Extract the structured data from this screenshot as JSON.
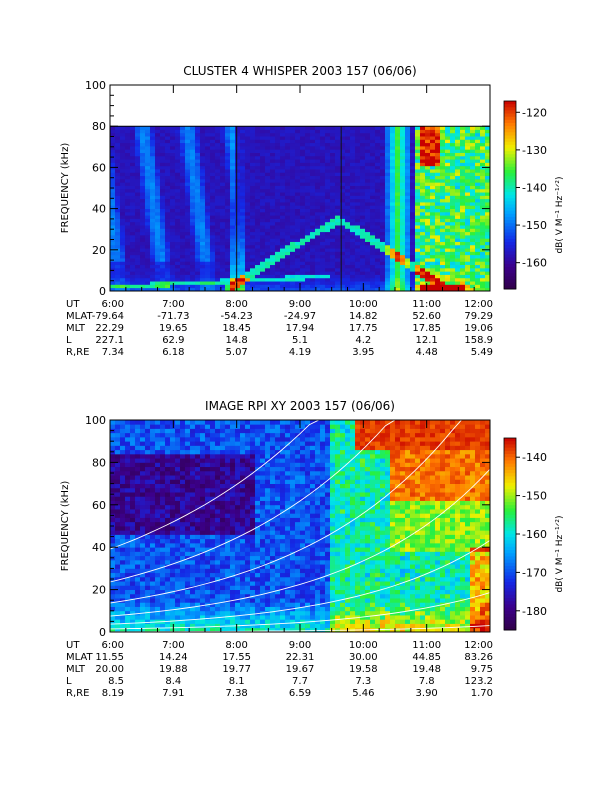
{
  "chart_data": [
    {
      "type": "heatmap",
      "title": "CLUSTER 4 WHISPER 2003 157 (06/06)",
      "ylabel": "FREQUENCY (kHz)",
      "ylim": [
        0,
        100
      ],
      "yticks": [
        "0",
        "20",
        "40",
        "60",
        "80",
        "100"
      ],
      "xlim": [
        "6:00",
        "12:00"
      ],
      "xticks": [
        "6:00",
        "7:00",
        "8:00",
        "9:00",
        "10:00",
        "11:00",
        "12:00"
      ],
      "data_ceiling_khz": 80,
      "colorbar": {
        "label": "dB( V M⁻¹ Hz⁻¹ᐟ²)",
        "range": [
          -167,
          -117
        ],
        "ticks": [
          "-120",
          "-130",
          "-140",
          "-150",
          "-160"
        ],
        "tick_values": [
          -120,
          -130,
          -140,
          -150,
          -160
        ]
      },
      "ephemeris": [
        {
          "name": "UT",
          "values": [
            "6:00",
            "7:00",
            "8:00",
            "9:00",
            "10:00",
            "11:00",
            "12:00"
          ]
        },
        {
          "name": "MLAT",
          "values": [
            "-79.64",
            "-71.73",
            "-54.23",
            "-24.97",
            "14.82",
            "52.60",
            "79.29"
          ]
        },
        {
          "name": "MLT",
          "values": [
            "22.29",
            "19.65",
            "18.45",
            "17.94",
            "17.75",
            "17.85",
            "19.06"
          ]
        },
        {
          "name": "L",
          "values": [
            "227.1",
            "62.9",
            "14.8",
            "5.1",
            "4.2",
            "12.1",
            "158.9"
          ]
        },
        {
          "name": "R,RE",
          "values": [
            "7.34",
            "6.18",
            "5.07",
            "4.19",
            "3.95",
            "4.48",
            "5.49"
          ]
        }
      ],
      "scheme": "cluster"
    },
    {
      "type": "heatmap",
      "title": "IMAGE RPI XY 2003 157 (06/06)",
      "ylabel": "FREQUENCY (kHz)",
      "ylim": [
        0,
        100
      ],
      "yticks": [
        "0",
        "20",
        "40",
        "60",
        "80",
        "100"
      ],
      "xlim": [
        "6:00",
        "12:00"
      ],
      "xticks": [
        "6:00",
        "7:00",
        "8:00",
        "9:00",
        "10:00",
        "11:00",
        "12:00"
      ],
      "colorbar": {
        "label": "dB( V M⁻¹ Hz⁻¹ᐟ²)",
        "range": [
          -185,
          -135
        ],
        "ticks": [
          "-140",
          "-150",
          "-160",
          "-170",
          "-180"
        ],
        "tick_values": [
          -140,
          -150,
          -160,
          -170,
          -180
        ]
      },
      "ephemeris": [
        {
          "name": "UT",
          "values": [
            "6:00",
            "7:00",
            "8:00",
            "9:00",
            "10:00",
            "11:00",
            "12:00"
          ]
        },
        {
          "name": "MLAT",
          "values": [
            "11.55",
            "14.24",
            "17.55",
            "22.31",
            "30.00",
            "44.85",
            "83.26"
          ]
        },
        {
          "name": "MLT",
          "values": [
            "20.00",
            "19.88",
            "19.77",
            "19.67",
            "19.58",
            "19.48",
            "9.75"
          ]
        },
        {
          "name": "L",
          "values": [
            "8.5",
            "8.4",
            "8.1",
            "7.7",
            "7.3",
            "7.8",
            "123.2"
          ]
        },
        {
          "name": "R,RE",
          "values": [
            "8.19",
            "7.91",
            "7.38",
            "6.59",
            "5.46",
            "3.90",
            "1.70"
          ]
        }
      ],
      "scheme": "image"
    }
  ]
}
